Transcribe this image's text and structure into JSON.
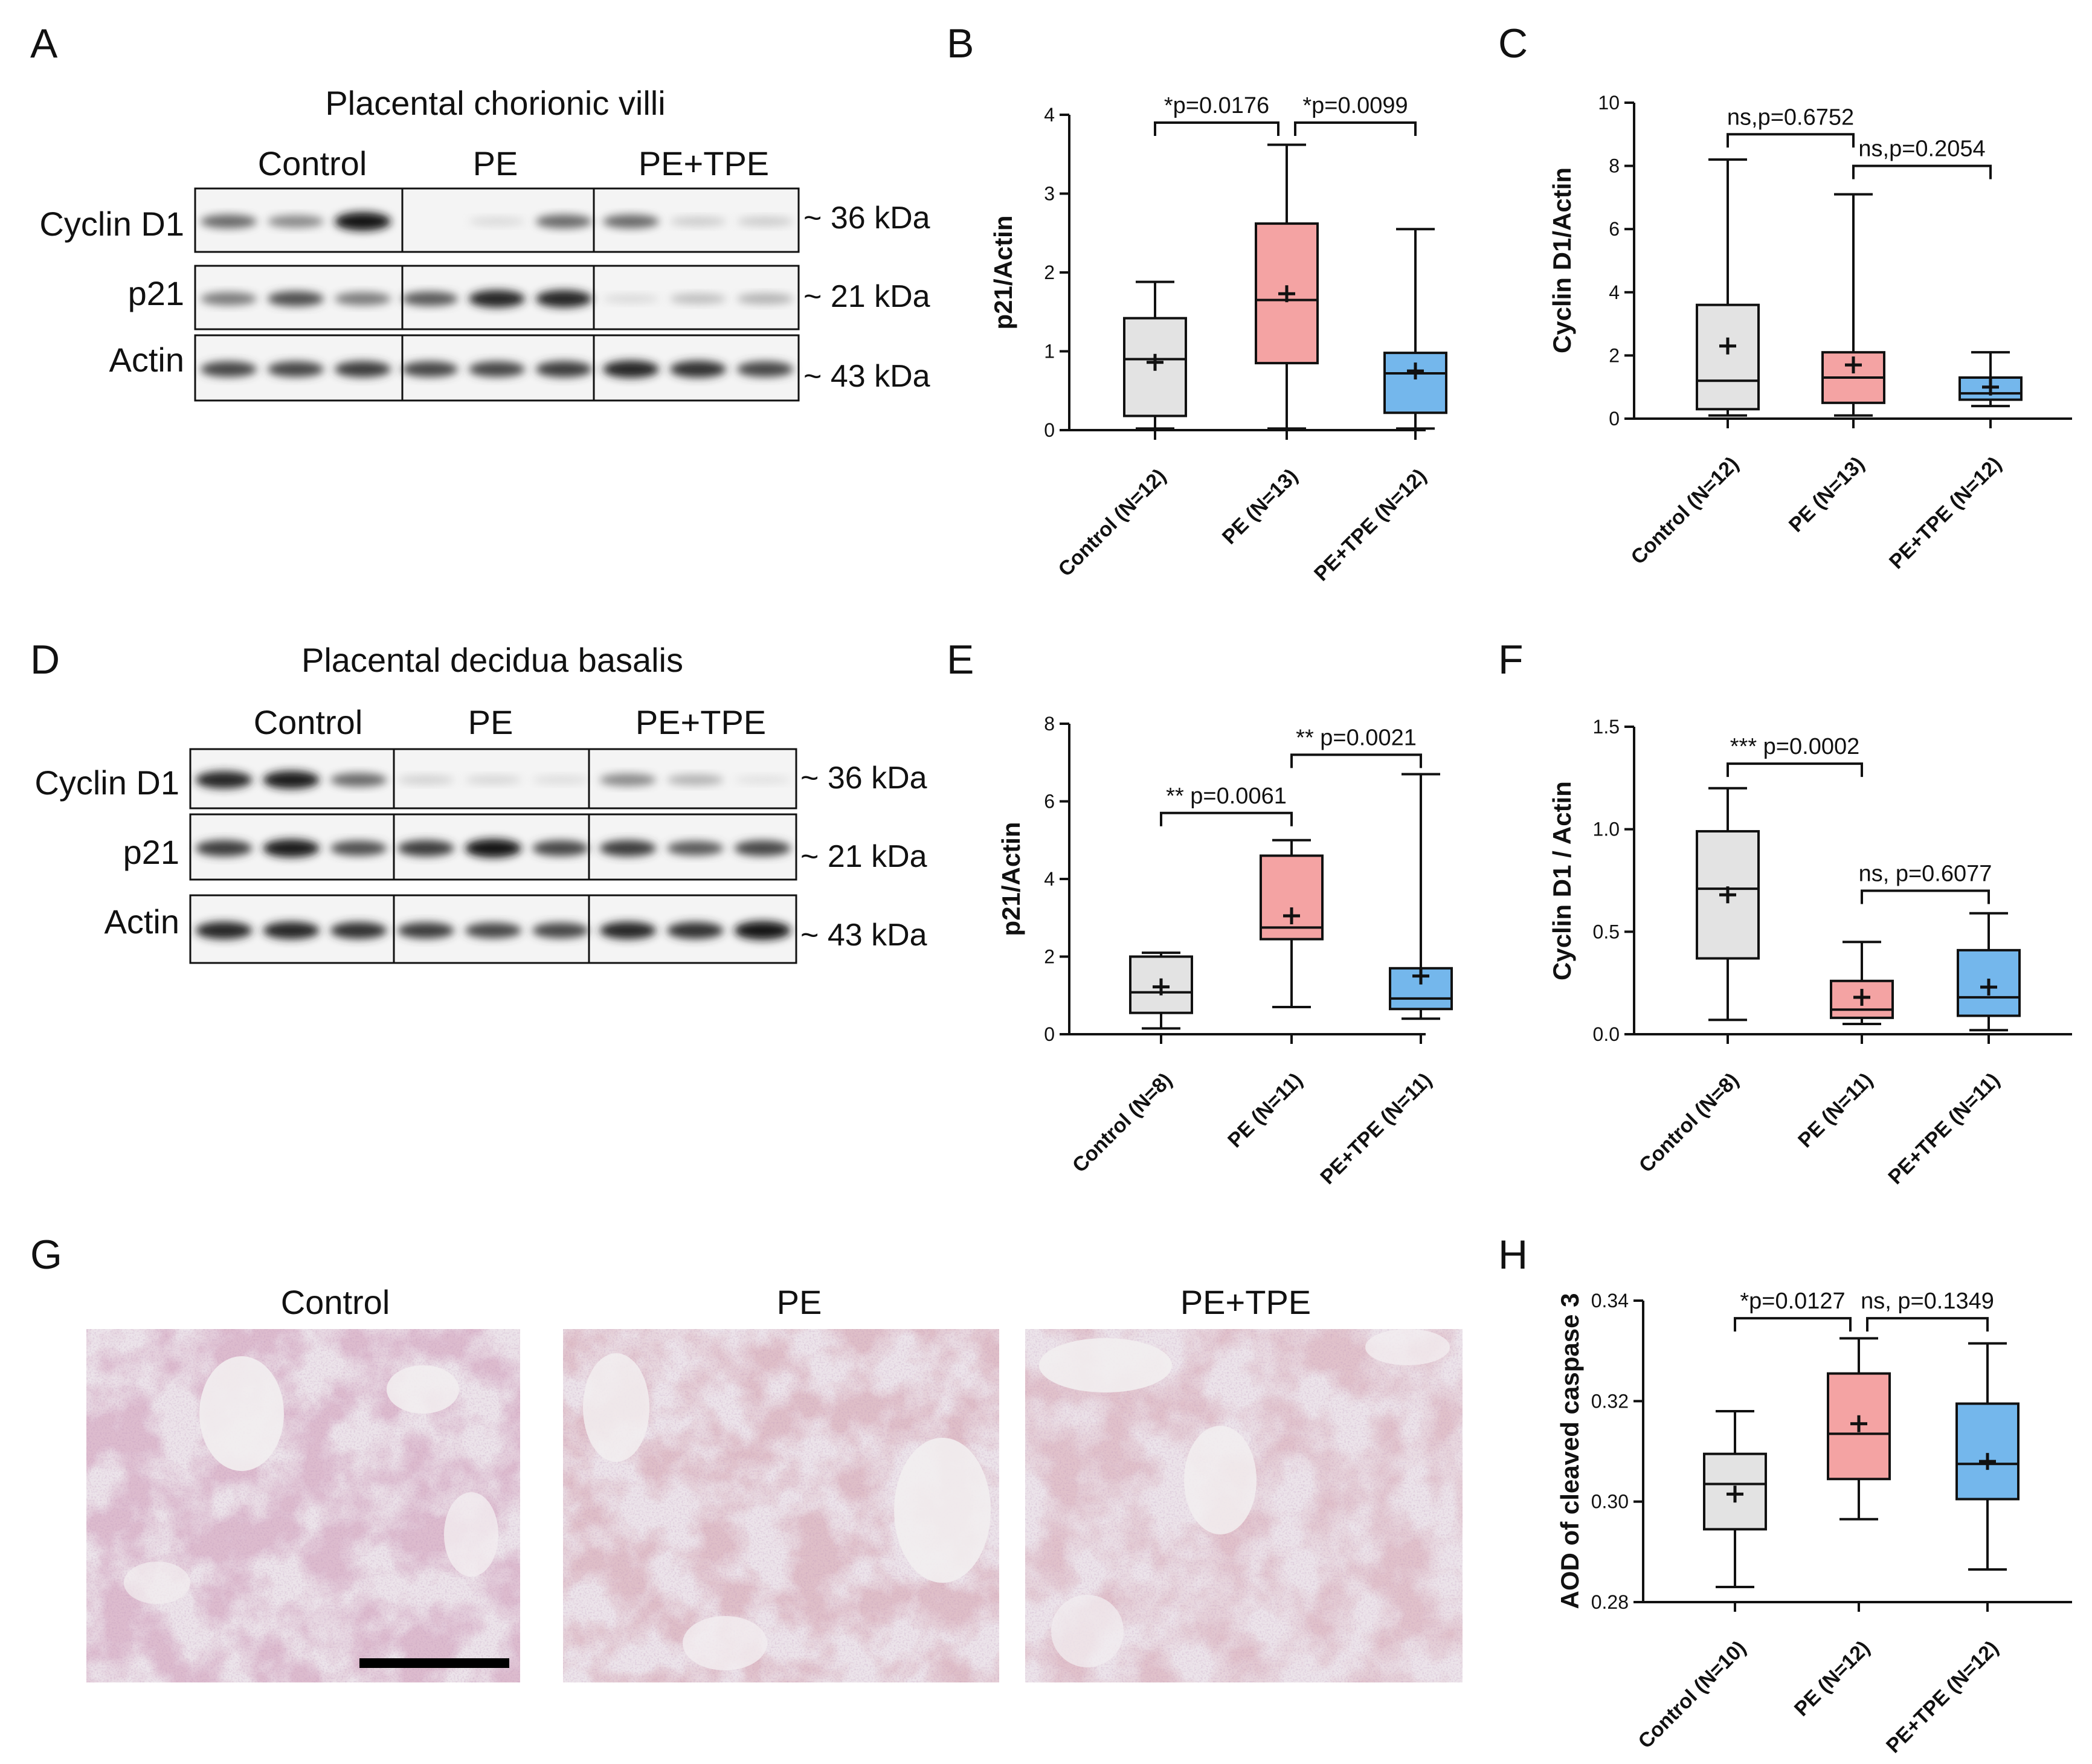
{
  "colors": {
    "control": "#e3e3e3",
    "pe": "#f4a3a3",
    "pe_tpe": "#74b7ec",
    "ink": "#111111"
  },
  "panel_letters": [
    "A",
    "B",
    "C",
    "D",
    "E",
    "F",
    "G",
    "H"
  ],
  "blot_A": {
    "title": "Placental chorionic villi",
    "groups": [
      "Control",
      "PE",
      "PE+TPE"
    ],
    "rows": [
      {
        "name": "Cyclin D1",
        "kda": "~ 36 kDa",
        "intensity": [
          0.55,
          0.45,
          0.95,
          0.0,
          0.1,
          0.55,
          0.55,
          0.18,
          0.18
        ]
      },
      {
        "name": "p21",
        "kda": "~ 21 kDa",
        "intensity": [
          0.5,
          0.65,
          0.5,
          0.6,
          0.85,
          0.85,
          0.1,
          0.25,
          0.3
        ]
      },
      {
        "name": "Actin",
        "kda": "~ 43 kDa",
        "intensity": [
          0.7,
          0.7,
          0.75,
          0.7,
          0.7,
          0.75,
          0.85,
          0.8,
          0.7
        ]
      }
    ]
  },
  "blot_D": {
    "title": "Placental decidua basalis",
    "groups": [
      "Control",
      "PE",
      "PE+TPE"
    ],
    "rows": [
      {
        "name": "Cyclin D1",
        "kda": "~ 36 kDa",
        "intensity": [
          0.85,
          0.9,
          0.55,
          0.15,
          0.12,
          0.08,
          0.45,
          0.3,
          0.05
        ]
      },
      {
        "name": "p21",
        "kda": "~ 21 kDa",
        "intensity": [
          0.75,
          0.9,
          0.65,
          0.75,
          0.95,
          0.7,
          0.75,
          0.6,
          0.7
        ]
      },
      {
        "name": "Actin",
        "kda": "~ 43 kDa",
        "intensity": [
          0.85,
          0.85,
          0.8,
          0.75,
          0.7,
          0.7,
          0.85,
          0.8,
          0.95
        ]
      }
    ]
  },
  "micrographs_G": {
    "labels": [
      "Control",
      "PE",
      "PE+TPE"
    ]
  },
  "chart_data": [
    {
      "panel": "B",
      "type": "box",
      "ylabel": "p21/Actin",
      "ylim": [
        0,
        4
      ],
      "yticks": [
        0,
        1,
        2,
        3,
        4
      ],
      "categories": [
        "Control (N=12)",
        "PE (N=13)",
        "PE+TPE (N=12)"
      ],
      "boxes": [
        {
          "min": 0.02,
          "q1": 0.18,
          "median": 0.9,
          "q3": 1.42,
          "max": 1.88,
          "mean": 0.86
        },
        {
          "min": 0.02,
          "q1": 0.85,
          "median": 1.65,
          "q3": 2.62,
          "max": 3.62,
          "mean": 1.73
        },
        {
          "min": 0.02,
          "q1": 0.22,
          "median": 0.72,
          "q3": 0.98,
          "max": 2.55,
          "mean": 0.75
        }
      ],
      "comparisons": [
        {
          "from": 0,
          "to": 1,
          "y": 3.9,
          "label": "*p=0.0176"
        },
        {
          "from": 1,
          "to": 2,
          "y": 3.9,
          "label": "*p=0.0099"
        }
      ]
    },
    {
      "panel": "C",
      "type": "box",
      "ylabel": "Cyclin D1/Actin",
      "ylim": [
        0,
        10
      ],
      "yticks": [
        0,
        2,
        4,
        6,
        8,
        10
      ],
      "categories": [
        "Control (N=12)",
        "PE (N=13)",
        "PE+TPE (N=12)"
      ],
      "boxes": [
        {
          "min": 0.1,
          "q1": 0.3,
          "median": 1.2,
          "q3": 3.6,
          "max": 8.2,
          "mean": 2.3
        },
        {
          "min": 0.1,
          "q1": 0.5,
          "median": 1.3,
          "q3": 2.1,
          "max": 7.1,
          "mean": 1.7
        },
        {
          "min": 0.4,
          "q1": 0.6,
          "median": 0.8,
          "q3": 1.3,
          "max": 2.1,
          "mean": 1.0
        }
      ],
      "comparisons": [
        {
          "from": 0,
          "to": 1,
          "y": 9.0,
          "label": "ns,p=0.6752"
        },
        {
          "from": 1,
          "to": 2,
          "y": 8.0,
          "label": "ns,p=0.2054"
        }
      ]
    },
    {
      "panel": "E",
      "type": "box",
      "ylabel": "p21/Actin",
      "ylim": [
        0,
        8
      ],
      "yticks": [
        0,
        2,
        4,
        6,
        8
      ],
      "categories": [
        "Control (N=8)",
        "PE (N=11)",
        "PE+TPE (N=11)"
      ],
      "boxes": [
        {
          "min": 0.15,
          "q1": 0.55,
          "median": 1.08,
          "q3": 2.0,
          "max": 2.1,
          "mean": 1.22
        },
        {
          "min": 0.7,
          "q1": 2.45,
          "median": 2.75,
          "q3": 4.6,
          "max": 5.0,
          "mean": 3.05
        },
        {
          "min": 0.4,
          "q1": 0.65,
          "median": 0.92,
          "q3": 1.7,
          "max": 6.7,
          "mean": 1.5
        }
      ],
      "comparisons": [
        {
          "from": 0,
          "to": 1,
          "y": 5.7,
          "label": "** p=0.0061"
        },
        {
          "from": 1,
          "to": 2,
          "y": 7.2,
          "label": "** p=0.0021"
        }
      ]
    },
    {
      "panel": "F",
      "type": "box",
      "ylabel": "Cyclin D1 / Actin",
      "ylim": [
        0,
        1.5
      ],
      "yticks": [
        0.0,
        0.5,
        1.0,
        1.5
      ],
      "ytick_labels": [
        "0.0",
        "0.5",
        "1.0",
        "1.5"
      ],
      "categories": [
        "Control (N=8)",
        "PE (N=11)",
        "PE+TPE (N=11)"
      ],
      "boxes": [
        {
          "min": 0.07,
          "q1": 0.37,
          "median": 0.71,
          "q3": 0.99,
          "max": 1.2,
          "mean": 0.68
        },
        {
          "min": 0.05,
          "q1": 0.08,
          "median": 0.12,
          "q3": 0.26,
          "max": 0.45,
          "mean": 0.18
        },
        {
          "min": 0.02,
          "q1": 0.09,
          "median": 0.18,
          "q3": 0.41,
          "max": 0.59,
          "mean": 0.23
        }
      ],
      "comparisons": [
        {
          "from": 0,
          "to": 1,
          "y": 1.32,
          "label": "*** p=0.0002"
        },
        {
          "from": 1,
          "to": 2,
          "y": 0.7,
          "label": "ns, p=0.6077"
        }
      ]
    },
    {
      "panel": "H",
      "type": "box",
      "ylabel": "AOD of cleaved caspase 3",
      "ylim": [
        0.28,
        0.34
      ],
      "yticks": [
        0.28,
        0.3,
        0.32,
        0.34
      ],
      "ytick_labels": [
        "0.28",
        "0.30",
        "0.32",
        "0.34"
      ],
      "categories": [
        "Control (N=10)",
        "PE (N=12)",
        "PE+TPE (N=12)"
      ],
      "boxes": [
        {
          "min": 0.283,
          "q1": 0.2945,
          "median": 0.3035,
          "q3": 0.3095,
          "max": 0.318,
          "mean": 0.3015
        },
        {
          "min": 0.2965,
          "q1": 0.3045,
          "median": 0.3135,
          "q3": 0.3255,
          "max": 0.3325,
          "mean": 0.3155
        },
        {
          "min": 0.2865,
          "q1": 0.3005,
          "median": 0.3075,
          "q3": 0.3195,
          "max": 0.3315,
          "mean": 0.308
        }
      ],
      "comparisons": [
        {
          "from": 0,
          "to": 1,
          "y": 0.3365,
          "label": "*p=0.0127"
        },
        {
          "from": 1,
          "to": 2,
          "y": 0.3365,
          "label": "ns, p=0.1349"
        }
      ]
    }
  ]
}
